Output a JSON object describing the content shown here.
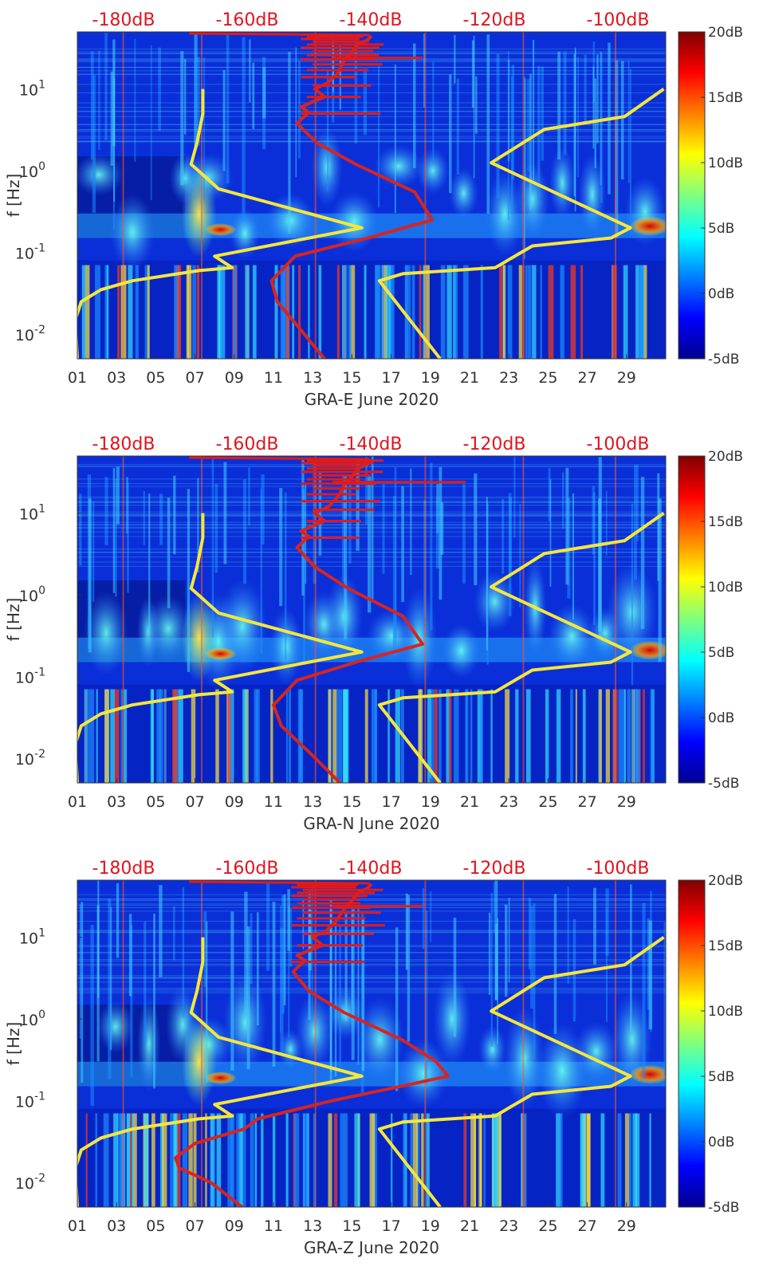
{
  "chart_data": [
    {
      "type": "heatmap",
      "xlabel": "GRA-E June 2020",
      "ylabel": "f [Hz]",
      "y_scale": "log",
      "ylim": [
        0.005,
        50
      ],
      "xlim": [
        1,
        31
      ],
      "x_tick_labels": [
        "01",
        "03",
        "05",
        "07",
        "09",
        "11",
        "13",
        "15",
        "17",
        "19",
        "21",
        "23",
        "25",
        "27",
        "29"
      ],
      "y_tick_labels": [
        {
          "base": "10",
          "exp": "-2"
        },
        {
          "base": "10",
          "exp": "-1"
        },
        {
          "base": "10",
          "exp": "0"
        },
        {
          "base": "10",
          "exp": "1"
        }
      ],
      "top_axis_labels": [
        "-180dB",
        "-160dB",
        "-140dB",
        "-120dB",
        "-100dB"
      ],
      "colorbar": {
        "labels": [
          "20dB",
          "15dB",
          "10dB",
          "5dB",
          "0dB",
          "-5dB"
        ],
        "range": [
          -5,
          20
        ],
        "colormap": "jet"
      },
      "series": [
        {
          "color": "#f5e63c",
          "points": [
            [
              1,
              0.005
            ],
            [
              0.9,
              0.015
            ],
            [
              1.2,
              0.025
            ],
            [
              2.2,
              0.035
            ],
            [
              3.8,
              0.045
            ],
            [
              7.2,
              0.06
            ],
            [
              8.9,
              0.065
            ],
            [
              8.0,
              0.09
            ],
            [
              15.5,
              0.2
            ],
            [
              8.2,
              0.6
            ],
            [
              6.8,
              1.2
            ],
            [
              7.1,
              2.2
            ],
            [
              7.4,
              5
            ],
            [
              7.4,
              10
            ]
          ]
        },
        {
          "color": "#f5e63c",
          "points": [
            [
              19.5,
              0.005
            ],
            [
              16.4,
              0.045
            ],
            [
              17.6,
              0.055
            ],
            [
              22.3,
              0.065
            ],
            [
              24.2,
              0.12
            ],
            [
              28.2,
              0.15
            ],
            [
              29.2,
              0.2
            ],
            [
              22.1,
              1.25
            ],
            [
              24.8,
              3.2
            ],
            [
              28.9,
              4.6
            ],
            [
              30.9,
              10
            ]
          ]
        },
        {
          "color": "#d8241f",
          "points": [
            [
              13.6,
              0.005
            ],
            [
              12.3,
              0.012
            ],
            [
              11.2,
              0.025
            ],
            [
              10.9,
              0.045
            ],
            [
              12.1,
              0.09
            ],
            [
              15.8,
              0.15
            ],
            [
              19.1,
              0.25
            ],
            [
              18.2,
              0.55
            ],
            [
              15.2,
              1.2
            ],
            [
              13.2,
              2.2
            ],
            [
              12.2,
              3.8
            ],
            [
              12.8,
              5.2
            ],
            [
              12.4,
              6
            ],
            [
              13,
              7
            ],
            [
              13.6,
              8
            ],
            [
              13.1,
              10
            ],
            [
              13.8,
              12
            ],
            [
              14.3,
              16
            ],
            [
              14.6,
              22
            ],
            [
              15,
              28
            ],
            [
              15.3,
              35
            ],
            [
              15.8,
              40
            ],
            [
              16,
              45
            ]
          ]
        }
      ]
    },
    {
      "type": "heatmap",
      "xlabel": "GRA-N June 2020",
      "ylabel": "f [Hz]",
      "y_scale": "log",
      "ylim": [
        0.005,
        50
      ],
      "xlim": [
        1,
        31
      ],
      "x_tick_labels": [
        "01",
        "03",
        "05",
        "07",
        "09",
        "11",
        "13",
        "15",
        "17",
        "19",
        "21",
        "23",
        "25",
        "27",
        "29"
      ],
      "y_tick_labels": [
        {
          "base": "10",
          "exp": "-2"
        },
        {
          "base": "10",
          "exp": "-1"
        },
        {
          "base": "10",
          "exp": "0"
        },
        {
          "base": "10",
          "exp": "1"
        }
      ],
      "top_axis_labels": [
        "-180dB",
        "-160dB",
        "-140dB",
        "-120dB",
        "-100dB"
      ],
      "colorbar": {
        "labels": [
          "20dB",
          "15dB",
          "10dB",
          "5dB",
          "0dB",
          "-5dB"
        ],
        "range": [
          -5,
          20
        ],
        "colormap": "jet"
      },
      "series": [
        {
          "color": "#f5e63c",
          "points": [
            [
              1,
              0.005
            ],
            [
              0.9,
              0.015
            ],
            [
              1.2,
              0.025
            ],
            [
              2.2,
              0.035
            ],
            [
              3.8,
              0.045
            ],
            [
              7.2,
              0.06
            ],
            [
              8.9,
              0.065
            ],
            [
              8.0,
              0.09
            ],
            [
              15.5,
              0.2
            ],
            [
              8.2,
              0.6
            ],
            [
              6.8,
              1.2
            ],
            [
              7.1,
              2.2
            ],
            [
              7.4,
              5
            ],
            [
              7.4,
              10
            ]
          ]
        },
        {
          "color": "#f5e63c",
          "points": [
            [
              19.5,
              0.005
            ],
            [
              16.4,
              0.045
            ],
            [
              17.6,
              0.055
            ],
            [
              22.3,
              0.065
            ],
            [
              24.2,
              0.12
            ],
            [
              28.2,
              0.15
            ],
            [
              29.2,
              0.2
            ],
            [
              22.1,
              1.25
            ],
            [
              24.8,
              3.2
            ],
            [
              28.9,
              4.6
            ],
            [
              30.9,
              10
            ]
          ]
        },
        {
          "color": "#d8241f",
          "points": [
            [
              14.4,
              0.005
            ],
            [
              12.8,
              0.012
            ],
            [
              11.4,
              0.025
            ],
            [
              11.0,
              0.045
            ],
            [
              12.2,
              0.09
            ],
            [
              15.2,
              0.15
            ],
            [
              18.6,
              0.25
            ],
            [
              17.6,
              0.55
            ],
            [
              14.8,
              1.2
            ],
            [
              13.1,
              2.2
            ],
            [
              12.2,
              3.8
            ],
            [
              12.8,
              5.2
            ],
            [
              12.4,
              6
            ],
            [
              13,
              7
            ],
            [
              13.6,
              8
            ],
            [
              13.1,
              10
            ],
            [
              13.8,
              12
            ],
            [
              14.3,
              16
            ],
            [
              14.6,
              22
            ],
            [
              15,
              28
            ],
            [
              15.3,
              35
            ],
            [
              15.8,
              40
            ],
            [
              16,
              45
            ]
          ]
        }
      ]
    },
    {
      "type": "heatmap",
      "xlabel": "GRA-Z June 2020",
      "ylabel": "f [Hz]",
      "y_scale": "log",
      "ylim": [
        0.005,
        50
      ],
      "xlim": [
        1,
        31
      ],
      "x_tick_labels": [
        "01",
        "03",
        "05",
        "07",
        "09",
        "11",
        "13",
        "15",
        "17",
        "19",
        "21",
        "23",
        "25",
        "27",
        "29"
      ],
      "y_tick_labels": [
        {
          "base": "10",
          "exp": "-2"
        },
        {
          "base": "10",
          "exp": "-1"
        },
        {
          "base": "10",
          "exp": "0"
        },
        {
          "base": "10",
          "exp": "1"
        }
      ],
      "top_axis_labels": [
        "-180dB",
        "-160dB",
        "-140dB",
        "-120dB",
        "-100dB"
      ],
      "colorbar": {
        "labels": [
          "20dB",
          "15dB",
          "10dB",
          "5dB",
          "0dB",
          "-5dB"
        ],
        "range": [
          -5,
          20
        ],
        "colormap": "jet"
      },
      "series": [
        {
          "color": "#f5e63c",
          "points": [
            [
              1,
              0.005
            ],
            [
              0.9,
              0.015
            ],
            [
              1.2,
              0.025
            ],
            [
              2.2,
              0.035
            ],
            [
              3.8,
              0.045
            ],
            [
              7.2,
              0.06
            ],
            [
              8.9,
              0.065
            ],
            [
              8.0,
              0.09
            ],
            [
              15.5,
              0.2
            ],
            [
              8.2,
              0.6
            ],
            [
              6.8,
              1.2
            ],
            [
              7.1,
              2.2
            ],
            [
              7.4,
              5
            ],
            [
              7.4,
              10
            ]
          ]
        },
        {
          "color": "#f5e63c",
          "points": [
            [
              19.5,
              0.005
            ],
            [
              16.4,
              0.045
            ],
            [
              17.6,
              0.055
            ],
            [
              22.3,
              0.065
            ],
            [
              24.2,
              0.12
            ],
            [
              28.2,
              0.15
            ],
            [
              29.2,
              0.2
            ],
            [
              22.1,
              1.25
            ],
            [
              24.8,
              3.2
            ],
            [
              28.9,
              4.6
            ],
            [
              30.9,
              10
            ]
          ]
        },
        {
          "color": "#d8241f",
          "points": [
            [
              9.4,
              0.005
            ],
            [
              7.8,
              0.01
            ],
            [
              6.2,
              0.015
            ],
            [
              6.0,
              0.02
            ],
            [
              7.0,
              0.03
            ],
            [
              9.5,
              0.045
            ],
            [
              10.2,
              0.06
            ],
            [
              14.0,
              0.1
            ],
            [
              17.5,
              0.15
            ],
            [
              19.9,
              0.2
            ],
            [
              19.3,
              0.3
            ],
            [
              17.6,
              0.55
            ],
            [
              14.6,
              1.2
            ],
            [
              12.8,
              2.2
            ],
            [
              12.0,
              3.8
            ],
            [
              12.6,
              5.2
            ],
            [
              12.2,
              6
            ],
            [
              12.9,
              7
            ],
            [
              13.5,
              8
            ],
            [
              13.0,
              10
            ],
            [
              13.7,
              12
            ],
            [
              14.2,
              16
            ],
            [
              14.6,
              22
            ],
            [
              15,
              28
            ],
            [
              15.3,
              35
            ],
            [
              15.8,
              40
            ],
            [
              16,
              45
            ]
          ]
        }
      ]
    }
  ]
}
